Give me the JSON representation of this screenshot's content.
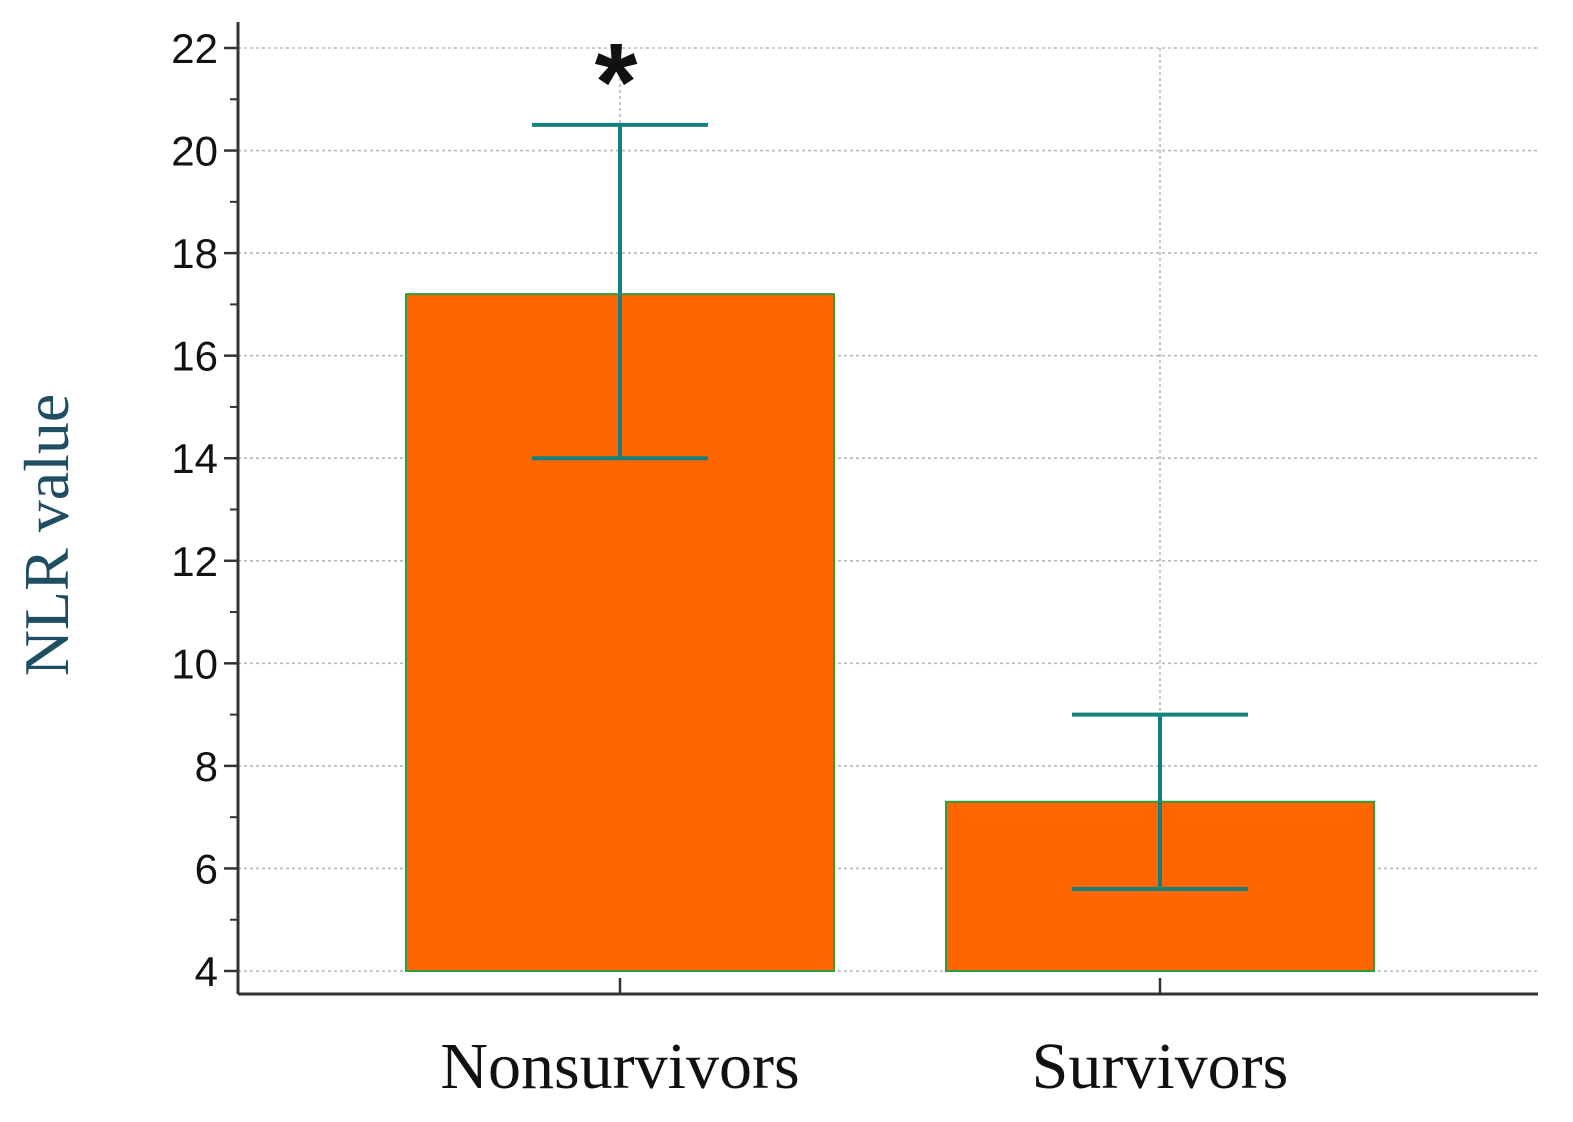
{
  "chart_data": {
    "type": "bar",
    "categories": [
      "Nonsurvivors",
      "Survivors"
    ],
    "values": [
      17.2,
      7.3
    ],
    "error_bars": [
      {
        "low": 14.0,
        "high": 20.5
      },
      {
        "low": 5.6,
        "high": 9.0
      }
    ],
    "annotations": [
      {
        "category": "Nonsurvivors",
        "text": "*"
      }
    ],
    "title": "",
    "xlabel": "",
    "ylabel": "NLR value",
    "ylim": [
      4,
      22
    ],
    "yticks": [
      "4",
      "6",
      "8",
      "10",
      "12",
      "14",
      "16",
      "18",
      "20",
      "22"
    ],
    "grid": true,
    "legend": "none",
    "colors": {
      "bar_fill": "#ff6600",
      "bar_edge": "#2e9e3a",
      "error_bar": "#138080",
      "grid": "#b8b8b8",
      "axis": "#333333",
      "ylabel": "#1f4e63"
    }
  }
}
